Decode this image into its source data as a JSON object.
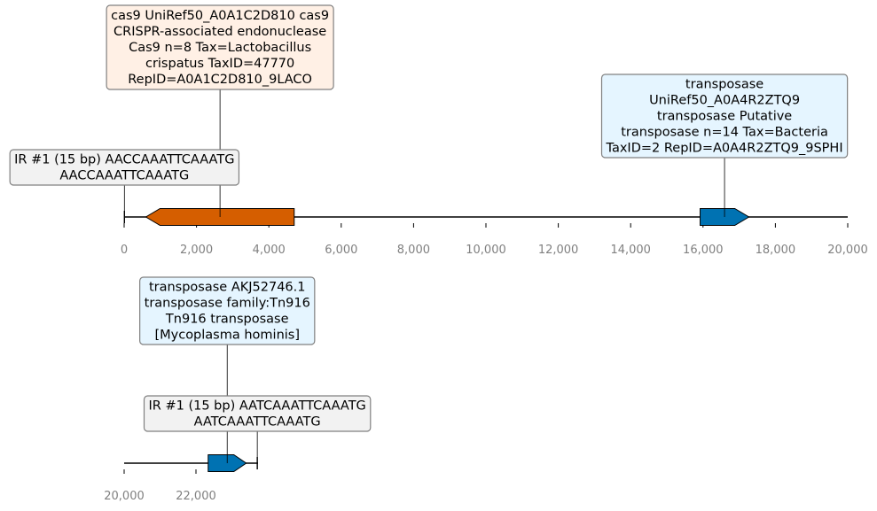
{
  "colors": {
    "forward_gene": "#0072b2",
    "reverse_gene": "#d55e00",
    "ann_cas9_bg": "#fff0e5",
    "ann_transposase_bg": "#e5f5ff",
    "ann_ir_bg": "#f2f2f2",
    "ann_border": "#808080",
    "tick_text": "#808080",
    "line": "#000000"
  },
  "tracks": [
    {
      "id": "track-1",
      "axis_range": [
        0,
        20000
      ],
      "ticks": [
        "0",
        "2,000",
        "4,000",
        "6,000",
        "8,000",
        "10,000",
        "12,000",
        "14,000",
        "16,000",
        "18,000",
        "20,000"
      ],
      "features": [
        {
          "name": "cas9-gene-arrow",
          "start": 600,
          "end": 4700,
          "strand": -1,
          "color_key": "reverse_gene",
          "annotation": {
            "name": "cas9-annotation",
            "lines": [
              "cas9 UniRef50_A0A1C2D810 cas9",
              "CRISPR-associated endonuclease",
              "Cas9 n=8 Tax=Lactobacillus",
              "crispatus TaxID=47770",
              "RepID=A0A1C2D810_9LACO"
            ],
            "bg_key": "ann_cas9_bg",
            "level": "high"
          }
        },
        {
          "name": "transposase-gene-arrow",
          "start": 15920,
          "end": 17270,
          "strand": 1,
          "color_key": "forward_gene",
          "annotation": {
            "name": "transposase-annotation",
            "lines": [
              "transposase",
              "UniRef50_A0A4R2ZTQ9",
              "transposase Putative",
              "transposase n=14 Tax=Bacteria",
              "TaxID=2 RepID=A0A4R2ZTQ9_9SPHI"
            ],
            "bg_key": "ann_transposase_bg",
            "level": "mid"
          }
        },
        {
          "name": "inverted-repeat-marker",
          "start": 0,
          "end": 15,
          "strand": 0,
          "color_key": "line",
          "annotation": {
            "name": "inverted-repeat-annotation",
            "lines": [
              "IR #1 (15 bp) AACCAAATTCAAATG",
              "AACCAAATTCAAATG"
            ],
            "bg_key": "ann_ir_bg",
            "level": "low"
          }
        }
      ]
    },
    {
      "id": "track-2",
      "axis_range": [
        20000,
        43000
      ],
      "ticks": [
        "20,000",
        "22,000"
      ],
      "features": [
        {
          "name": "tn916-transposase-gene-arrow",
          "start": 22340,
          "end": 23400,
          "strand": 1,
          "color_key": "forward_gene",
          "annotation": {
            "name": "tn916-transposase-annotation",
            "lines": [
              "transposase AKJ52746.1",
              "transposase family:Tn916",
              "Tn916 transposase",
              "[Mycoplasma hominis]"
            ],
            "bg_key": "ann_transposase_bg",
            "level": "high"
          }
        },
        {
          "name": "inverted-repeat-marker-2",
          "start": 23700,
          "end": 23715,
          "strand": 0,
          "color_key": "line",
          "annotation": {
            "name": "inverted-repeat-annotation-2",
            "lines": [
              "IR #1 (15 bp) AATCAAATTCAAATG",
              "AATCAAATTCAAATG"
            ],
            "bg_key": "ann_ir_bg",
            "level": "low"
          }
        }
      ]
    }
  ]
}
